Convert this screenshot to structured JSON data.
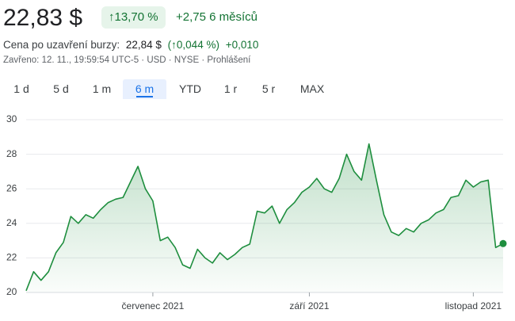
{
  "header": {
    "price": "22,83 $",
    "change_percent": "↑13,70 %",
    "change": "+2,75 6 měsíců",
    "after_hours_label": "Cena po uzavření burzy:",
    "after_hours_price": "22,84 $",
    "after_hours_percent": "(↑0,044 %)",
    "after_hours_change": "+0,010",
    "status": "Zavřeno: 12. 11., 19:59:54 UTC-5 · USD · NYSE · Prohlášení"
  },
  "tabs": [
    "1 d",
    "5 d",
    "1 m",
    "6 m",
    "YTD",
    "1 r",
    "5 r",
    "MAX"
  ],
  "selected_tab": 3,
  "chart_data": {
    "type": "line",
    "color": "#1e8e3e",
    "categories": [
      null,
      null,
      null,
      null,
      null,
      null,
      null,
      null,
      null,
      null,
      null,
      null,
      null,
      null,
      null,
      null,
      null,
      "červenec 2021",
      null,
      null,
      null,
      null,
      null,
      null,
      null,
      null,
      null,
      null,
      null,
      null,
      null,
      null,
      null,
      null,
      null,
      null,
      null,
      null,
      "září 2021",
      null,
      null,
      null,
      null,
      null,
      null,
      null,
      null,
      null,
      null,
      null,
      null,
      null,
      null,
      null,
      null,
      null,
      null,
      null,
      null,
      null,
      "listopad 2021",
      null,
      null,
      null,
      null
    ],
    "values": [
      20.1,
      21.2,
      20.7,
      21.2,
      22.3,
      22.9,
      24.4,
      24.0,
      24.5,
      24.3,
      24.8,
      25.2,
      25.4,
      25.5,
      26.4,
      27.3,
      26.0,
      25.3,
      23.0,
      23.2,
      22.6,
      21.6,
      21.4,
      22.5,
      22.0,
      21.7,
      22.3,
      21.9,
      22.2,
      22.6,
      22.8,
      24.7,
      24.6,
      25.0,
      24.0,
      24.8,
      25.2,
      25.8,
      26.1,
      26.6,
      26.0,
      25.8,
      26.6,
      28.0,
      27.0,
      26.5,
      28.6,
      26.5,
      24.5,
      23.5,
      23.3,
      23.7,
      23.5,
      24.0,
      24.2,
      24.6,
      24.8,
      25.5,
      25.6,
      26.5,
      26.1,
      26.4,
      26.5,
      22.6,
      22.83
    ],
    "ylim": [
      20,
      30
    ],
    "yticks": [
      20,
      22,
      24,
      26,
      28,
      30
    ],
    "grid": true
  }
}
